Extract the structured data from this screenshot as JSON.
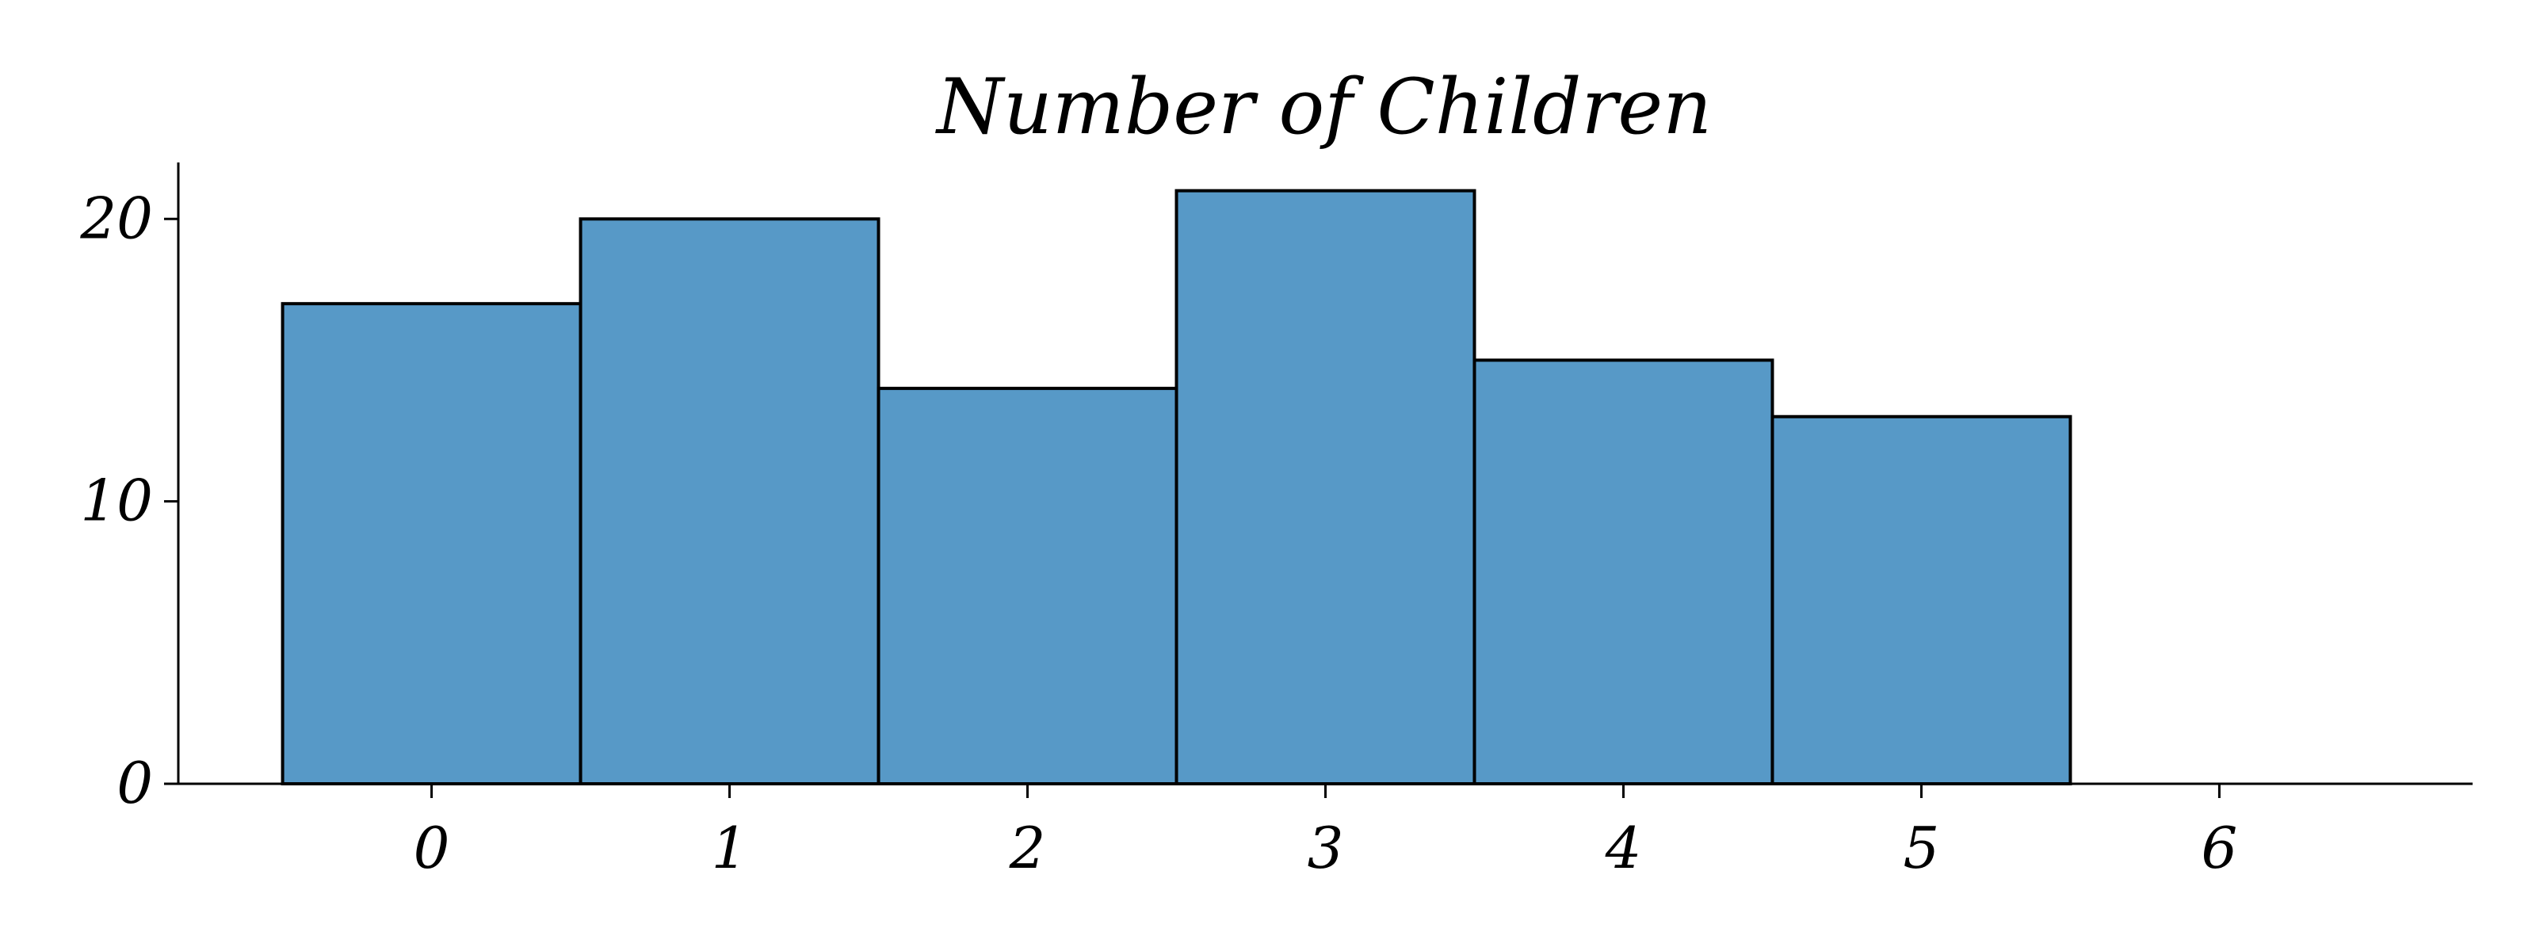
{
  "chart_data": {
    "type": "bar",
    "title": "Number of Children",
    "xlabel": "",
    "ylabel": "",
    "categories": [
      "0",
      "1",
      "2",
      "3",
      "4",
      "5",
      "6"
    ],
    "values": [
      17,
      20,
      14,
      21,
      15,
      13,
      0
    ],
    "ylim": [
      0,
      22
    ],
    "xlim": [
      -0.85,
      6.85
    ],
    "y_ticks": [
      0,
      10,
      20
    ],
    "y_tick_labels": [
      "0",
      "10",
      "20"
    ],
    "x_ticks": [
      0,
      1,
      2,
      3,
      4,
      5,
      6
    ],
    "x_tick_labels": [
      "0",
      "1",
      "2",
      "3",
      "4",
      "5",
      "6"
    ],
    "bar_color": "#5799c7",
    "edge_color": "#000000",
    "grid": false,
    "legend": "none"
  }
}
